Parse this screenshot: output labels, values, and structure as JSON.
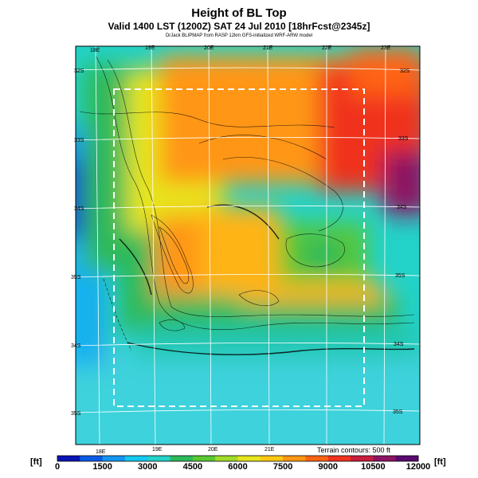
{
  "header": {
    "title": "Height of BL Top",
    "subtitle": "Valid 1400 LST (1200Z) SAT 24 Jul 2010 [18hrFcst@2345z]",
    "credit": "DrJack BLIPMAP from RASP 12km GFS-initialized WRF-ARW model"
  },
  "map": {
    "lon_labels_top": [
      "18E",
      "19E",
      "20E",
      "21E",
      "22E",
      "23E"
    ],
    "lon_labels_bottom": [
      "18E",
      "19E",
      "20E",
      "21E"
    ],
    "lat_labels_left": [
      "32S",
      "33S",
      "34S",
      "35S",
      "34S",
      "35S"
    ],
    "lat_labels_right": [
      "32S",
      "33S",
      "34S",
      "35S",
      "34S",
      "35S"
    ],
    "terrain_note": "Terrain contours: 500 ft"
  },
  "colorbar": {
    "unit_left": "[ft]",
    "unit_right": "[ft]",
    "ticks": [
      "0",
      "1500",
      "3000",
      "4500",
      "6000",
      "7500",
      "9000",
      "10500",
      "12000"
    ],
    "colors": [
      "#0a14b4",
      "#0a5ae6",
      "#1496f0",
      "#14c8f0",
      "#23d2c8",
      "#2db95a",
      "#5ac832",
      "#a0dc28",
      "#e6e61e",
      "#ffc814",
      "#ff9614",
      "#ff6414",
      "#f0321e",
      "#c81e3c",
      "#8c1464",
      "#5a0a6e"
    ]
  }
}
